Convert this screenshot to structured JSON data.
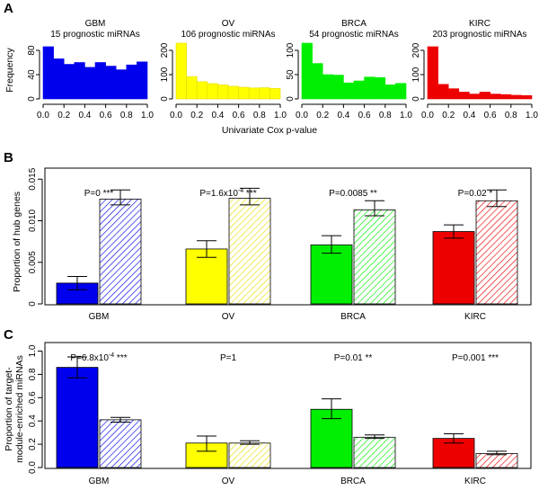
{
  "panels": {
    "A": {
      "letter": "A",
      "xlabel": "Univariate Cox p-value",
      "ylabel": "Frequency",
      "xticks": [
        "0.0",
        "0.2",
        "0.4",
        "0.6",
        "0.8",
        "1.0"
      ]
    },
    "B": {
      "letter": "B",
      "ylabel": "Proportion of hub genes",
      "yticks": [
        "0",
        "0.005",
        "0.010",
        "0.015"
      ]
    },
    "C": {
      "letter": "C",
      "ylabel_lines": [
        "Proportion of target-",
        "module-enriched miRNAs"
      ],
      "yticks": [
        "0.0",
        "0.2",
        "0.4",
        "0.6",
        "0.8",
        "1.0"
      ]
    }
  },
  "chart_data": [
    {
      "type": "bar",
      "panel": "A",
      "subtype": "histogram",
      "xlabel": "Univariate Cox p-value",
      "ylabel": "Frequency",
      "bins": [
        0.0,
        0.1,
        0.2,
        0.3,
        0.4,
        0.5,
        0.6,
        0.7,
        0.8,
        0.9,
        1.0
      ],
      "histograms": [
        {
          "name": "GBM",
          "subtitle": "15 prognostic miRNAs",
          "color": "#0000ee",
          "ylim": [
            0,
            80
          ],
          "yticks": [
            "0",
            "40",
            "80"
          ],
          "values": [
            86,
            66,
            57,
            60,
            52,
            60,
            54,
            48,
            56,
            61
          ]
        },
        {
          "name": "OV",
          "subtitle": "106 prognostic miRNAs",
          "color": "#ffff00",
          "ylim": [
            0,
            200
          ],
          "yticks": [
            "0",
            "100",
            "200"
          ],
          "values": [
            230,
            92,
            71,
            63,
            58,
            52,
            48,
            45,
            46,
            43
          ]
        },
        {
          "name": "BRCA",
          "subtitle": "54 prognostic miRNAs",
          "color": "#00ee00",
          "ylim": [
            0,
            100
          ],
          "yticks": [
            "0",
            "50",
            "100"
          ],
          "values": [
            133,
            73,
            50,
            49,
            33,
            37,
            45,
            44,
            29,
            32
          ]
        },
        {
          "name": "KIRC",
          "subtitle": "203 prognostic miRNAs",
          "color": "#ee0000",
          "ylim": [
            0,
            200
          ],
          "yticks": [
            "0",
            "100",
            "200"
          ],
          "values": [
            215,
            60,
            42,
            28,
            20,
            28,
            20,
            18,
            15,
            14
          ]
        }
      ]
    },
    {
      "type": "bar",
      "panel": "B",
      "ylabel": "Proportion of hub genes",
      "ylim": [
        0,
        0.016
      ],
      "categories": [
        "GBM",
        "OV",
        "BRCA",
        "KIRC"
      ],
      "colors": [
        "#0000ee",
        "#ffff00",
        "#00ee00",
        "#ee0000"
      ],
      "series": [
        {
          "name": "prognostic",
          "pattern": "solid",
          "values": [
            0.0025,
            0.0066,
            0.0071,
            0.0087
          ],
          "err_low": [
            0.0017,
            0.0056,
            0.0061,
            0.0079
          ],
          "err_high": [
            0.0033,
            0.0076,
            0.0082,
            0.0095
          ]
        },
        {
          "name": "background",
          "pattern": "hatched",
          "values": [
            0.0126,
            0.0127,
            0.0113,
            0.0124
          ],
          "err_low": [
            0.0119,
            0.0119,
            0.0106,
            0.0117
          ],
          "err_high": [
            0.0137,
            0.0139,
            0.0124,
            0.0137
          ]
        }
      ],
      "annotations": [
        {
          "p_base": "P=0",
          "p_exp": "",
          "p_tail": "",
          "stars": "***"
        },
        {
          "p_base": "P=1.6x10",
          "p_exp": "-4",
          "p_tail": "",
          "stars": "***"
        },
        {
          "p_base": "P=0.0085",
          "p_exp": "",
          "p_tail": "",
          "stars": "**"
        },
        {
          "p_base": "P=0.02",
          "p_exp": "",
          "p_tail": "",
          "stars": "*"
        }
      ]
    },
    {
      "type": "bar",
      "panel": "C",
      "ylabel": "Proportion of target-module-enriched miRNAs",
      "ylim": [
        0,
        1.05
      ],
      "categories": [
        "GBM",
        "OV",
        "BRCA",
        "KIRC"
      ],
      "colors": [
        "#0000ee",
        "#ffff00",
        "#00ee00",
        "#ee0000"
      ],
      "series": [
        {
          "name": "prognostic",
          "pattern": "solid",
          "values": [
            0.86,
            0.21,
            0.5,
            0.25
          ],
          "err_low": [
            0.77,
            0.14,
            0.42,
            0.21
          ],
          "err_high": [
            0.95,
            0.27,
            0.59,
            0.29
          ]
        },
        {
          "name": "background",
          "pattern": "hatched",
          "values": [
            0.41,
            0.21,
            0.26,
            0.12
          ],
          "err_low": [
            0.39,
            0.2,
            0.25,
            0.11
          ],
          "err_high": [
            0.43,
            0.23,
            0.28,
            0.14
          ]
        }
      ],
      "annotations": [
        {
          "p_base": "P=6.8x10",
          "p_exp": "-4",
          "p_tail": "",
          "stars": "***"
        },
        {
          "p_base": "P=1",
          "p_exp": "",
          "p_tail": "",
          "stars": ""
        },
        {
          "p_base": "P=0.01",
          "p_exp": "",
          "p_tail": "",
          "stars": "**"
        },
        {
          "p_base": "P=0.001",
          "p_exp": "",
          "p_tail": "",
          "stars": "***"
        }
      ]
    }
  ]
}
